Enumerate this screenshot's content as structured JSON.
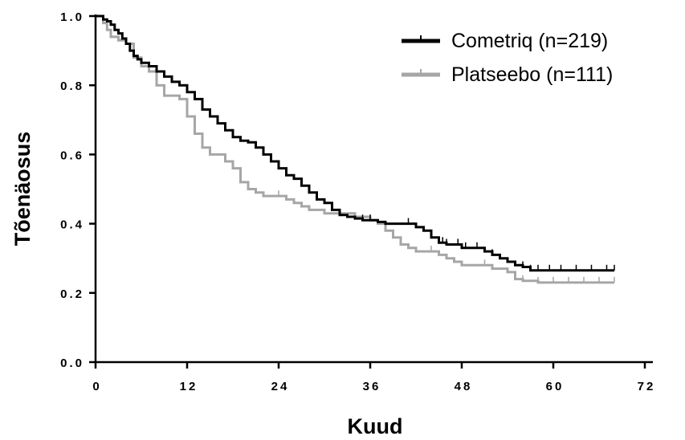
{
  "chart_data": {
    "type": "line",
    "title": "",
    "xlabel": "Kuud",
    "ylabel": "Tõenäosus",
    "xlim": [
      0,
      72
    ],
    "ylim": [
      0,
      1
    ],
    "x_ticks": [
      0,
      12,
      24,
      36,
      48,
      60,
      72
    ],
    "x_tick_labels": [
      "0",
      "12",
      "24",
      "36",
      "48",
      "60",
      "72"
    ],
    "y_ticks": [
      0,
      0.2,
      0.4,
      0.6,
      0.8,
      1.0
    ],
    "y_tick_labels": [
      "0.0",
      "0.2",
      "0.4",
      "0.6",
      "0.8",
      "1.0"
    ],
    "grid": false,
    "legend_position": "top-right",
    "series": [
      {
        "name": "Cometriq (n=219)",
        "color": "#000000",
        "points": [
          [
            0,
            1.0
          ],
          [
            0.5,
            1.0
          ],
          [
            1,
            0.99
          ],
          [
            1.5,
            0.985
          ],
          [
            2,
            0.975
          ],
          [
            2.5,
            0.96
          ],
          [
            3,
            0.95
          ],
          [
            3.5,
            0.935
          ],
          [
            4,
            0.92
          ],
          [
            4.5,
            0.9
          ],
          [
            5,
            0.885
          ],
          [
            5.5,
            0.875
          ],
          [
            6,
            0.865
          ],
          [
            7,
            0.855
          ],
          [
            8,
            0.84
          ],
          [
            9,
            0.825
          ],
          [
            10,
            0.81
          ],
          [
            11,
            0.8
          ],
          [
            12,
            0.78
          ],
          [
            13,
            0.76
          ],
          [
            14,
            0.73
          ],
          [
            15,
            0.71
          ],
          [
            16,
            0.69
          ],
          [
            17,
            0.67
          ],
          [
            18,
            0.65
          ],
          [
            19,
            0.64
          ],
          [
            20,
            0.635
          ],
          [
            21,
            0.62
          ],
          [
            22,
            0.6
          ],
          [
            23,
            0.58
          ],
          [
            24,
            0.56
          ],
          [
            25,
            0.54
          ],
          [
            26,
            0.53
          ],
          [
            27,
            0.51
          ],
          [
            28,
            0.49
          ],
          [
            29,
            0.47
          ],
          [
            30,
            0.46
          ],
          [
            31,
            0.44
          ],
          [
            32,
            0.425
          ],
          [
            33,
            0.42
          ],
          [
            34,
            0.415
          ],
          [
            35,
            0.41
          ],
          [
            36,
            0.41
          ],
          [
            37,
            0.405
          ],
          [
            38,
            0.4
          ],
          [
            40,
            0.4
          ],
          [
            42,
            0.39
          ],
          [
            43,
            0.38
          ],
          [
            44,
            0.36
          ],
          [
            45,
            0.345
          ],
          [
            46,
            0.34
          ],
          [
            48,
            0.33
          ],
          [
            50,
            0.33
          ],
          [
            51,
            0.32
          ],
          [
            52,
            0.31
          ],
          [
            53,
            0.3
          ],
          [
            54,
            0.29
          ],
          [
            55,
            0.28
          ],
          [
            56,
            0.275
          ],
          [
            57,
            0.265
          ],
          [
            60,
            0.265
          ],
          [
            62,
            0.265
          ],
          [
            64,
            0.265
          ],
          [
            66,
            0.265
          ],
          [
            68,
            0.265
          ]
        ],
        "censor_x": [
          10,
          18,
          22,
          27,
          35,
          36,
          41,
          44,
          45.5,
          46,
          47.5,
          48.5,
          50,
          52,
          56,
          57,
          58,
          59.5,
          61,
          63,
          65,
          67,
          68
        ]
      },
      {
        "name": "Platseebo (n=111)",
        "color": "#a6a6a6",
        "points": [
          [
            0,
            1.0
          ],
          [
            1,
            0.98
          ],
          [
            1.5,
            0.96
          ],
          [
            2,
            0.94
          ],
          [
            3,
            0.93
          ],
          [
            4,
            0.92
          ],
          [
            5,
            0.88
          ],
          [
            6,
            0.855
          ],
          [
            7,
            0.84
          ],
          [
            8,
            0.8
          ],
          [
            9,
            0.77
          ],
          [
            10,
            0.77
          ],
          [
            11,
            0.76
          ],
          [
            12,
            0.71
          ],
          [
            13,
            0.66
          ],
          [
            14,
            0.62
          ],
          [
            15,
            0.6
          ],
          [
            16,
            0.6
          ],
          [
            17,
            0.58
          ],
          [
            18,
            0.56
          ],
          [
            19,
            0.52
          ],
          [
            20,
            0.5
          ],
          [
            21,
            0.49
          ],
          [
            22,
            0.48
          ],
          [
            24,
            0.48
          ],
          [
            25,
            0.47
          ],
          [
            26,
            0.46
          ],
          [
            27,
            0.45
          ],
          [
            28,
            0.44
          ],
          [
            30,
            0.43
          ],
          [
            32,
            0.43
          ],
          [
            34,
            0.42
          ],
          [
            36,
            0.41
          ],
          [
            37,
            0.4
          ],
          [
            38,
            0.38
          ],
          [
            39,
            0.36
          ],
          [
            40,
            0.34
          ],
          [
            41,
            0.33
          ],
          [
            42,
            0.32
          ],
          [
            44,
            0.32
          ],
          [
            45,
            0.31
          ],
          [
            46,
            0.3
          ],
          [
            47,
            0.29
          ],
          [
            48,
            0.28
          ],
          [
            50,
            0.28
          ],
          [
            52,
            0.27
          ],
          [
            54,
            0.26
          ],
          [
            55,
            0.24
          ],
          [
            56,
            0.235
          ],
          [
            58,
            0.23
          ],
          [
            60,
            0.23
          ],
          [
            62,
            0.23
          ],
          [
            64,
            0.23
          ],
          [
            66,
            0.23
          ],
          [
            68,
            0.23
          ]
        ],
        "censor_x": [
          24,
          36,
          44,
          51,
          56,
          58,
          60,
          62,
          64,
          66,
          68
        ]
      }
    ]
  }
}
